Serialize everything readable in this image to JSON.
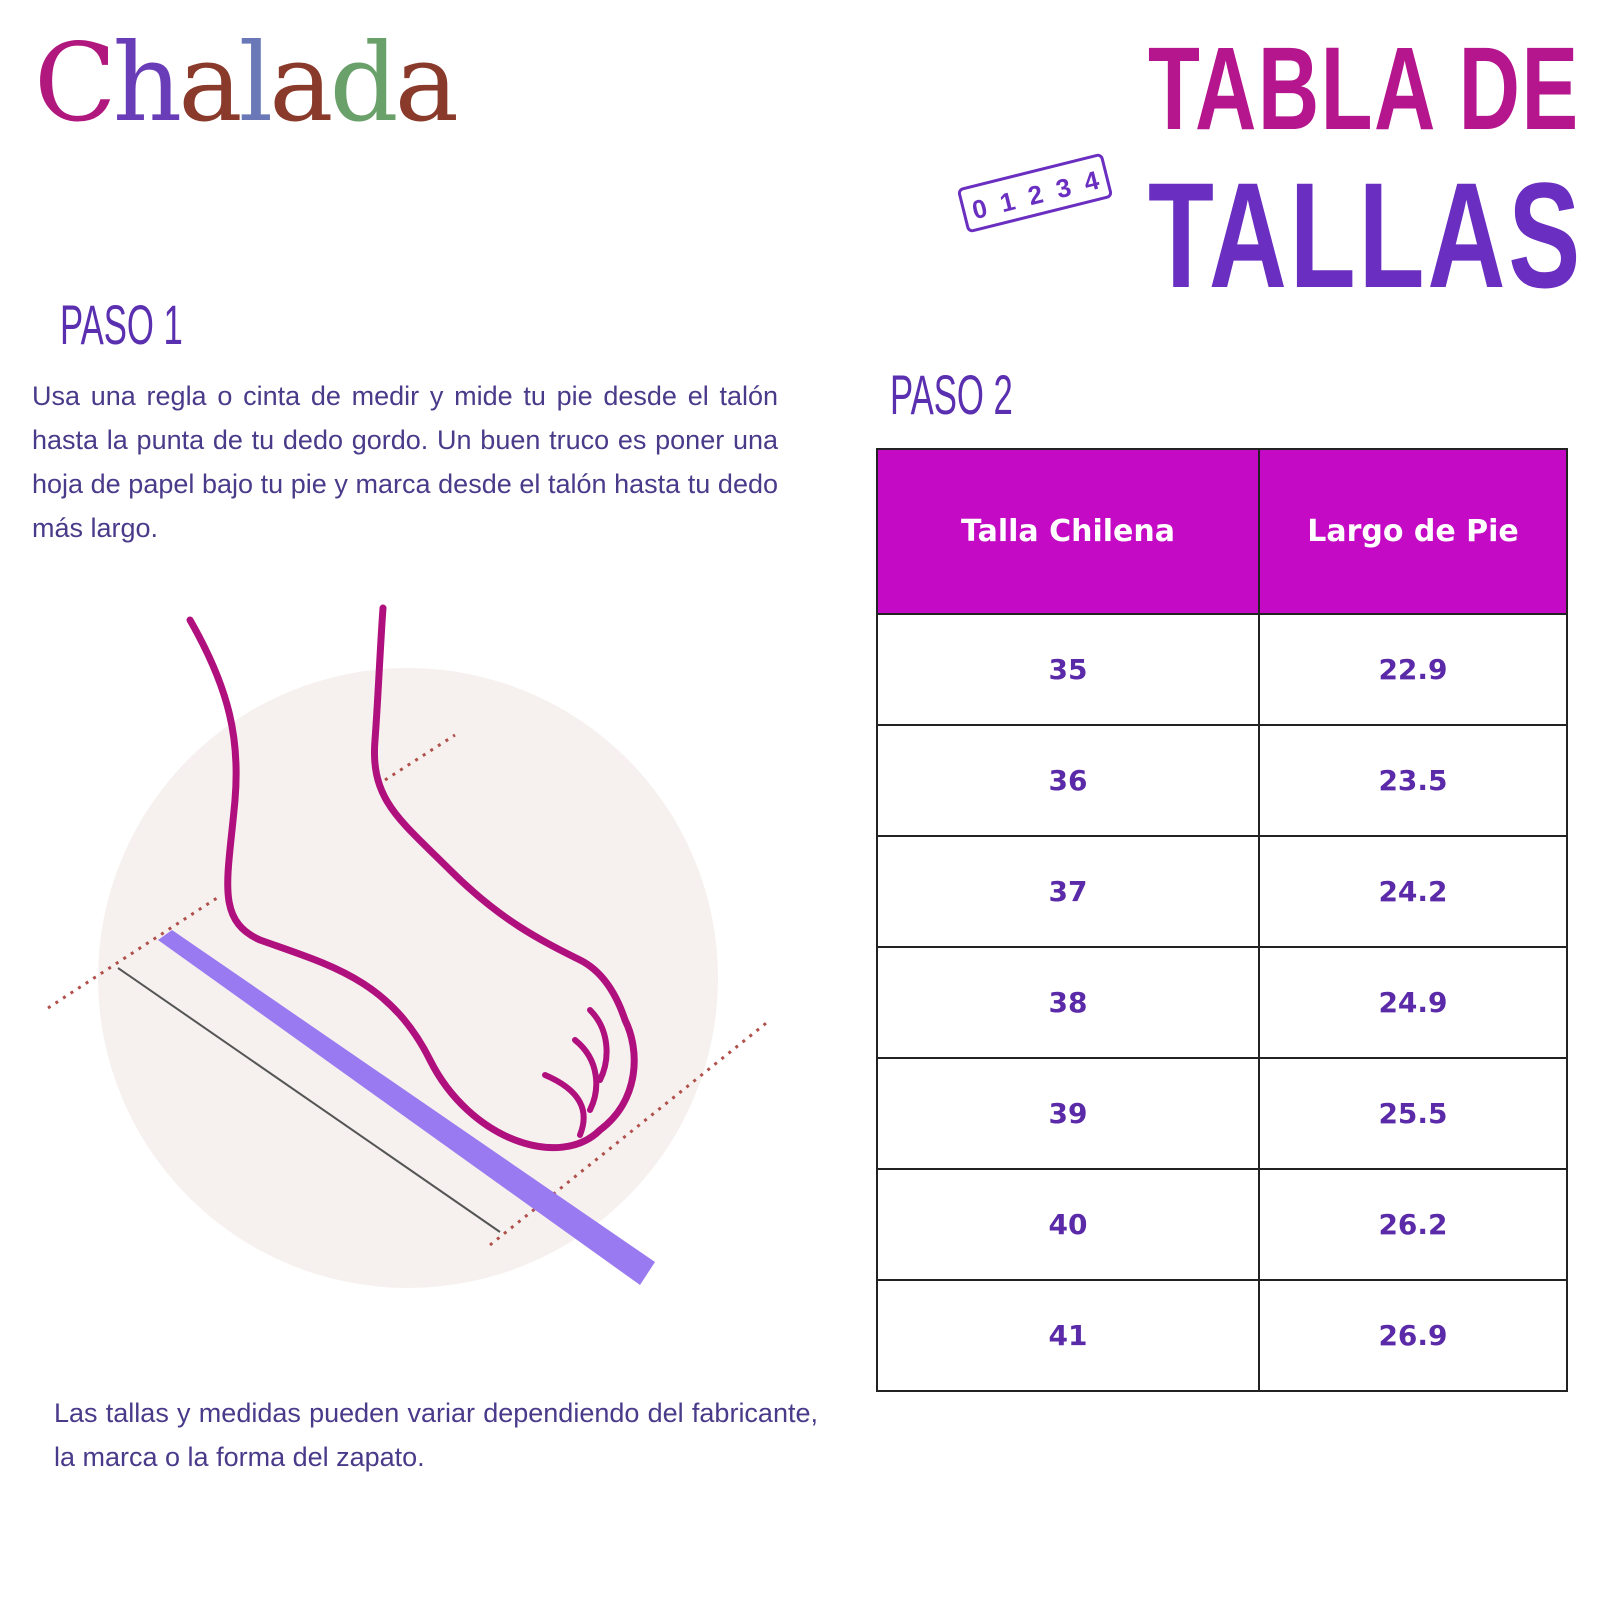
{
  "brand": {
    "logo_text": "Chalada",
    "logo_letters": [
      "C",
      "h",
      "a",
      "l",
      "a",
      "d",
      "a"
    ],
    "logo_colors": [
      "#b0187e",
      "#6a3db8",
      "#8a3a2a",
      "#6a78b8",
      "#8a3a2a",
      "#6aa06a",
      "#8a3a2a"
    ]
  },
  "title": {
    "line1": "TABLA DE",
    "line2": "TALLAS",
    "ruler_digits": [
      "0",
      "1",
      "2",
      "3",
      "4"
    ]
  },
  "step1": {
    "heading": "PASO 1",
    "text": "Usa una regla o cinta de medir y mide tu pie desde el talón hasta la punta de tu dedo gordo. Un buen truco es poner una hoja de papel bajo tu pie y marca desde el talón hasta tu dedo más largo."
  },
  "step2": {
    "heading": "PASO 2"
  },
  "table": {
    "headers": [
      "Talla Chilena",
      "Largo de Pie"
    ],
    "rows": [
      [
        "35",
        "22.9"
      ],
      [
        "36",
        "23.5"
      ],
      [
        "37",
        "24.2"
      ],
      [
        "38",
        "24.9"
      ],
      [
        "39",
        "25.5"
      ],
      [
        "40",
        "26.2"
      ],
      [
        "41",
        "26.9"
      ]
    ]
  },
  "note": "Las tallas y medidas pueden variar dependiendo del fabricante, la marca o la forma del zapato.",
  "colors": {
    "header_bg": "#c40ac4",
    "accent_purple": "#6a2fc0",
    "accent_magenta": "#b5168e",
    "foot_line": "#b0107e",
    "ruler": "#9a7af0"
  }
}
